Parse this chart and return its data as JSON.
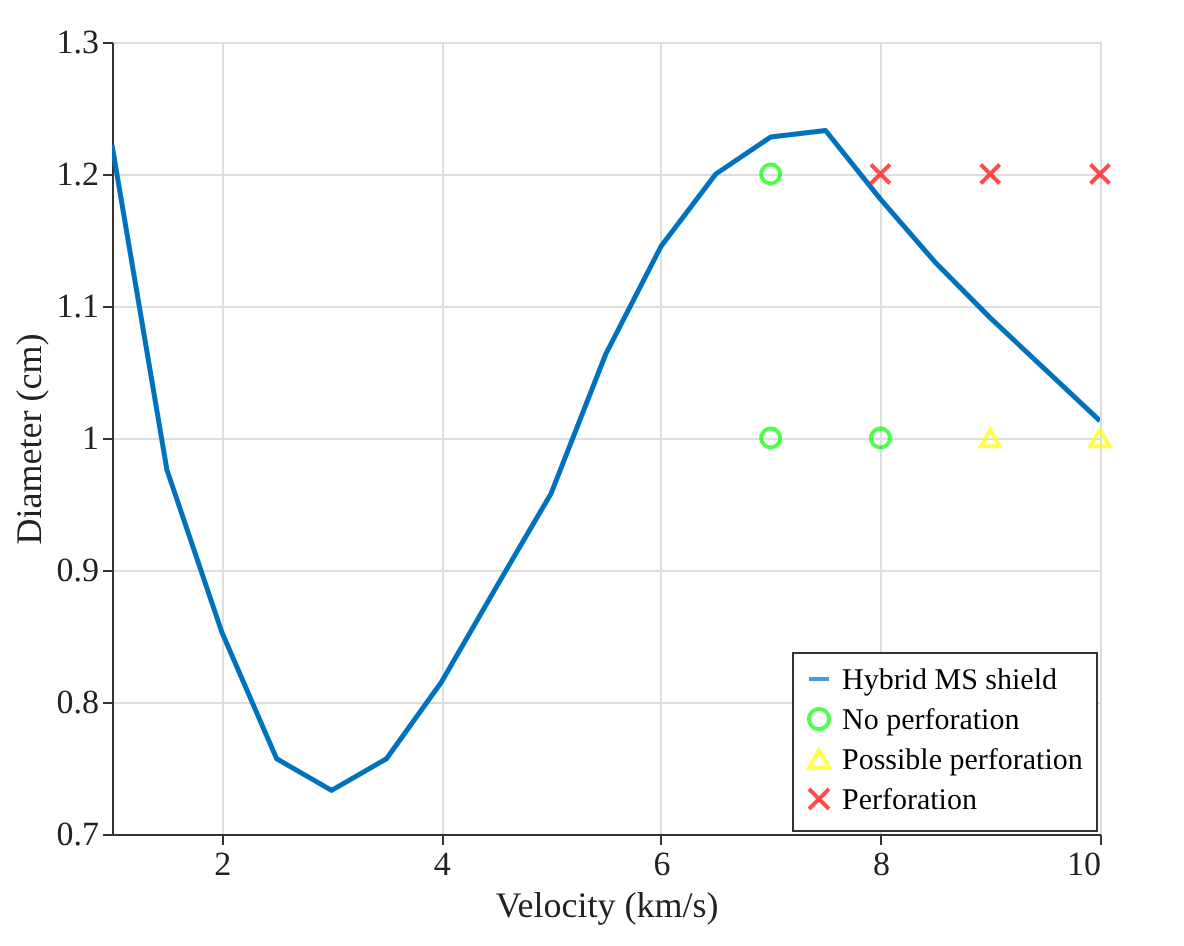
{
  "chart_data": {
    "type": "line",
    "xlabel": "Velocity (km/s)",
    "ylabel": "Diameter (cm)",
    "xlim": [
      1,
      10
    ],
    "xticks": [
      2,
      4,
      6,
      8,
      10
    ],
    "ylim": [
      0.7,
      1.3
    ],
    "yticks": [
      0.7,
      0.8,
      0.9,
      1,
      1.1,
      1.2,
      1.3
    ],
    "grid": true,
    "legend": "bottom right",
    "series": [
      {
        "name": "Hybrid MS shield",
        "marker": "none",
        "color": "#0072bd",
        "x": [
          1,
          1.5,
          2,
          2.5,
          3,
          3.5,
          4,
          4.5,
          5,
          5.5,
          6,
          6.5,
          7,
          7.5,
          8,
          8.5,
          9,
          9.5,
          10
        ],
        "values": [
          1.222,
          0.976,
          0.853,
          0.757,
          0.733,
          0.757,
          0.815,
          0.887,
          0.958,
          1.064,
          1.145,
          1.2,
          1.228,
          1.233,
          1.181,
          1.133,
          1.091,
          1.052,
          1.013
        ]
      },
      {
        "name": "No perforation",
        "type": "scatter",
        "marker": "circle",
        "color": "#00ff00",
        "x": [
          7,
          7,
          8
        ],
        "values": [
          1.2,
          1.0,
          1.0
        ]
      },
      {
        "name": "Possible perforation",
        "type": "scatter",
        "marker": "triangle",
        "color": "#ffff00",
        "x": [
          9,
          10
        ],
        "values": [
          1.0,
          1.0
        ]
      },
      {
        "name": "Perforation",
        "type": "scatter",
        "marker": "cross",
        "color": "#ff0000",
        "x": [
          8,
          9,
          10
        ],
        "values": [
          1.2,
          1.2,
          1.2
        ]
      }
    ]
  }
}
